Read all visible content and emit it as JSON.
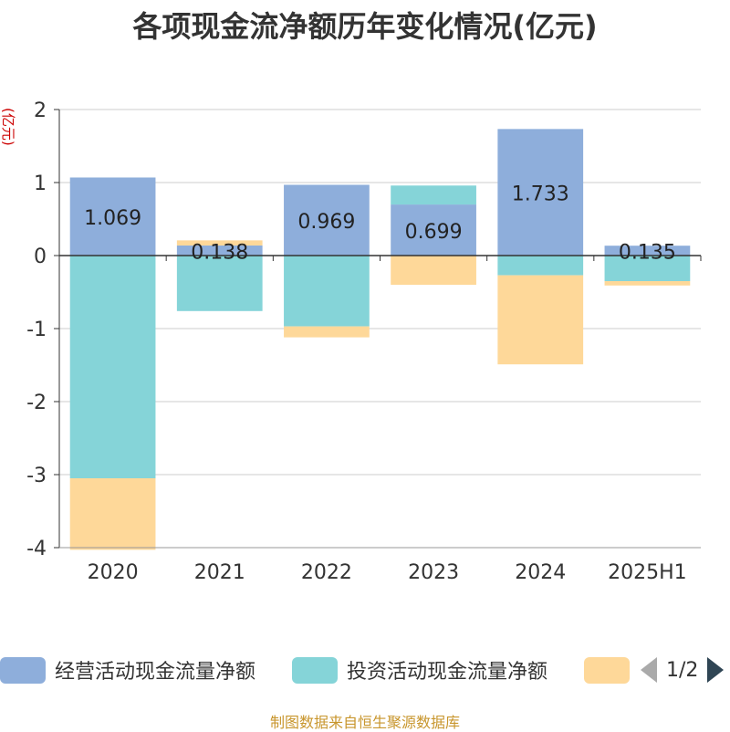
{
  "chart_data": {
    "type": "bar",
    "stacked": true,
    "title": "各项现金流净额历年变化情况(亿元)",
    "ylabel": "(亿元)",
    "categories": [
      "2020",
      "2021",
      "2022",
      "2023",
      "2024",
      "2025H1"
    ],
    "ylim": [
      -4,
      2
    ],
    "yticks": [
      2,
      1,
      0,
      -1,
      -2,
      -3,
      -4
    ],
    "grid": true,
    "legend_position": "bottom",
    "series": [
      {
        "name": "经营活动现金流量净额",
        "color": "#8eaedb",
        "values": [
          1.069,
          0.138,
          0.969,
          0.699,
          1.733,
          0.135
        ]
      },
      {
        "name": "投资活动现金流量净额",
        "color": "#85d4d8",
        "values": [
          -3.05,
          -0.76,
          -0.97,
          0.26,
          -0.27,
          -0.35
        ]
      },
      {
        "name": "",
        "color": "#fed899",
        "values": [
          -0.98,
          0.07,
          -0.15,
          -0.4,
          -1.22,
          -0.06
        ]
      }
    ],
    "data_labels": [
      "1.069",
      "0.138",
      "0.969",
      "0.699",
      "1.733",
      "0.135"
    ]
  },
  "legend": {
    "items": [
      {
        "label": "经营活动现金流量净额",
        "color": "#8eaedb"
      },
      {
        "label": "投资活动现金流量净额",
        "color": "#85d4d8"
      },
      {
        "label": "",
        "color": "#fed899"
      }
    ],
    "pager_text": "1/2"
  },
  "source": "制图数据来自恒生聚源数据库"
}
